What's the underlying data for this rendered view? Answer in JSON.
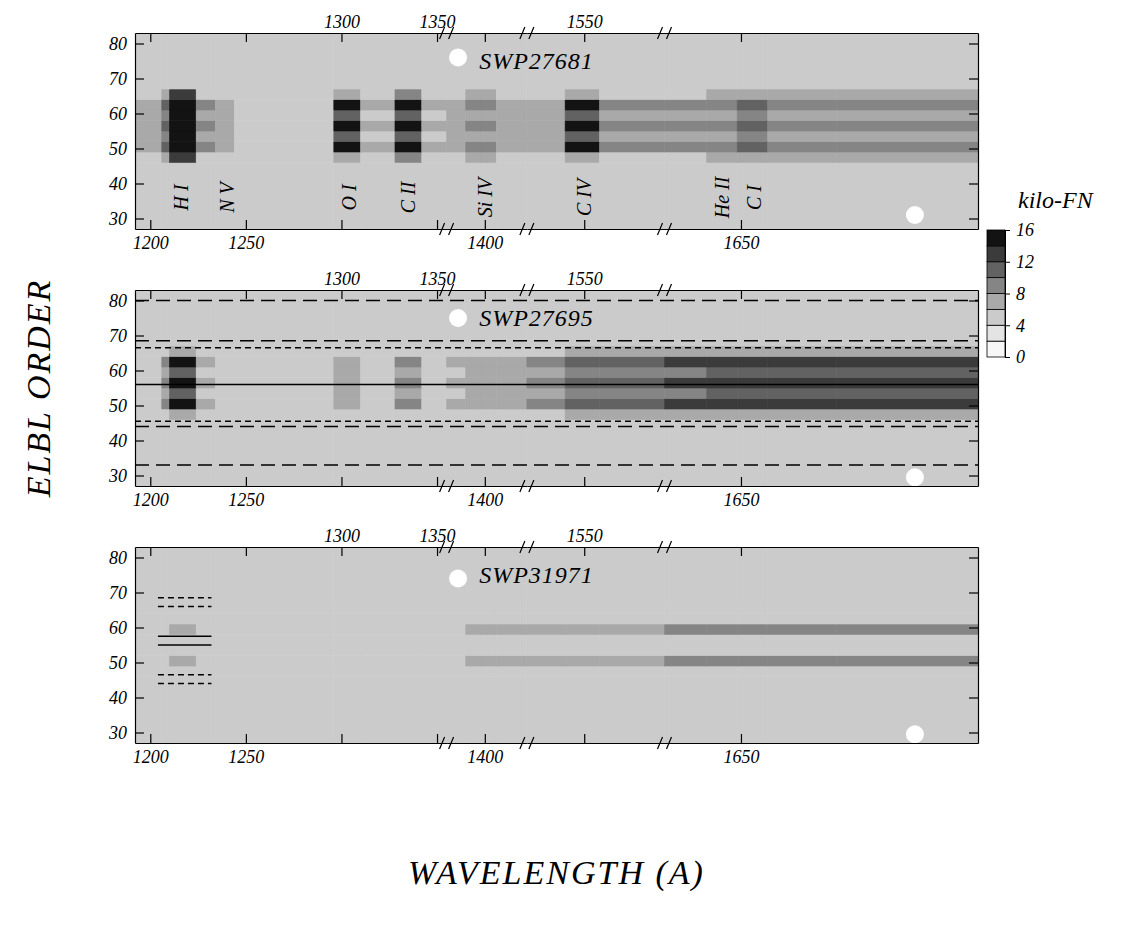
{
  "chart_data": {
    "type": "heatmap",
    "x_label": "WAVELENGTH (A)",
    "y_label": "ELBL ORDER",
    "ylim": [
      27,
      83
    ],
    "yticks": [
      30,
      40,
      50,
      60,
      70,
      80
    ],
    "y_edges": [
      27,
      46,
      49,
      52,
      55,
      58,
      61,
      64,
      67,
      83
    ],
    "x_segments": [
      {
        "xlim": [
          1192,
          1355
        ],
        "edges": [
          1192,
          1206,
          1210,
          1224,
          1234,
          1244,
          1296,
          1310,
          1328,
          1342,
          1355
        ],
        "xticks_bottom": [
          1200,
          1250
        ],
        "xticks_top": [
          1300,
          1350
        ]
      },
      {
        "xlim": [
          1380,
          1422
        ],
        "edges": [
          1380,
          1390,
          1398,
          1406,
          1422
        ],
        "xticks_bottom": [
          1400
        ],
        "xticks_top": []
      },
      {
        "xlim": [
          1520,
          1592
        ],
        "edges": [
          1520,
          1540,
          1558,
          1592
        ],
        "xticks_bottom": [],
        "xticks_top": [
          1550
        ]
      },
      {
        "xlim": [
          1610,
          1774
        ],
        "edges": [
          1610,
          1632,
          1648,
          1664,
          1700,
          1774
        ],
        "xticks_bottom": [
          1650
        ],
        "xticks_top": []
      }
    ],
    "colorbar": {
      "label": "kilo-FN",
      "range": [
        0,
        16
      ],
      "ticks": [
        0,
        4,
        8,
        12,
        16
      ],
      "levels": [
        0,
        2,
        4,
        6,
        8,
        10,
        12,
        14,
        16
      ]
    },
    "panels": [
      {
        "title": "SWP27681",
        "z": [
          [
            5,
            5,
            5,
            5,
            5,
            5,
            5,
            5,
            5,
            5,
            5,
            5,
            5,
            5,
            5,
            5,
            5,
            5,
            5,
            5,
            5,
            5
          ],
          [
            5.6,
            6.8,
            13,
            5.9,
            5.6,
            5.2,
            7.7,
            5.3,
            8,
            5.3,
            5.6,
            6.2,
            6.2,
            5.6,
            5.6,
            7.7,
            5.9,
            5.9,
            6.2,
            6.5,
            6.2,
            6.2
          ],
          [
            7,
            11,
            16,
            8,
            7,
            5.8,
            14,
            6,
            15,
            6,
            7,
            9,
            9,
            7,
            7,
            14,
            8,
            8,
            9,
            10,
            9,
            9
          ],
          [
            6.2,
            8.6,
            15,
            6.8,
            6.2,
            5.5,
            10.4,
            5.6,
            11,
            5.6,
            6.2,
            7.4,
            7.4,
            6.2,
            6.2,
            10.4,
            6.8,
            6.8,
            7.4,
            8,
            7.4,
            7.4
          ],
          [
            7,
            11,
            16,
            8,
            7,
            5.8,
            14,
            6,
            15,
            6,
            7,
            9,
            9,
            7,
            7,
            14,
            8,
            8,
            9,
            10,
            9,
            9
          ],
          [
            6.2,
            8.6,
            15,
            6.8,
            6.2,
            5.5,
            10.4,
            5.6,
            11,
            5.6,
            6.2,
            7.4,
            7.4,
            6.2,
            6.2,
            10.4,
            6.8,
            6.8,
            7.4,
            8,
            7.4,
            7.4
          ],
          [
            7,
            11,
            16,
            8,
            7,
            5.8,
            14,
            6,
            15,
            6,
            7,
            9,
            9,
            7,
            7,
            14,
            8,
            8,
            9,
            10,
            9,
            9
          ],
          [
            5.6,
            6.8,
            13,
            5.9,
            5.6,
            5.2,
            7.7,
            5.3,
            8,
            5.3,
            5.6,
            6.2,
            6.2,
            5.6,
            5.6,
            7.7,
            5.9,
            5.9,
            6.2,
            6.5,
            6.2,
            6.2
          ],
          [
            5,
            5,
            5,
            5,
            5,
            5,
            5,
            5,
            5,
            5,
            5,
            5,
            5,
            5,
            5,
            5,
            5,
            5,
            5,
            5,
            5,
            5
          ]
        ],
        "line_labels": [
          {
            "text": "H I",
            "x": 1216
          },
          {
            "text": "N V",
            "x": 1240
          },
          {
            "text": "O I",
            "x": 1304
          },
          {
            "text": "C II",
            "x": 1335
          },
          {
            "text": "Si IV",
            "x": 1400
          },
          {
            "text": "C IV",
            "x": 1550
          },
          {
            "text": "He II",
            "x": 1640
          },
          {
            "text": "C I",
            "x": 1657
          }
        ],
        "lines": [],
        "masked": [
          {
            "x": 1386,
            "y": 76
          },
          {
            "x": 1741,
            "y": 31
          }
        ]
      },
      {
        "title": "SWP27695",
        "z": [
          [
            4,
            4,
            4,
            4,
            4,
            4,
            4,
            4,
            4,
            4,
            4,
            4,
            4,
            4,
            4,
            4,
            4,
            4,
            4,
            4,
            4,
            4
          ],
          [
            4.4,
            5.4,
            7.5,
            4.7,
            4.2,
            4.4,
            5.1,
            4.4,
            5.8,
            4.5,
            4.7,
            5.1,
            5.1,
            5.1,
            5.8,
            6.1,
            6.1,
            6.8,
            7.2,
            7.2,
            7.3,
            7.3
          ],
          [
            5,
            8,
            14,
            6,
            4.5,
            5,
            7,
            5,
            9,
            5.5,
            6,
            7,
            7,
            7,
            9,
            10,
            10,
            12,
            13,
            13,
            13.5,
            13.5
          ],
          [
            4.7,
            6.8,
            11,
            5.4,
            4.4,
            4.7,
            6.1,
            4.7,
            7.5,
            5.1,
            5.4,
            6.1,
            6.1,
            6.1,
            7.5,
            8.2,
            8.2,
            9.6,
            10.3,
            10.3,
            10.7,
            10.7
          ],
          [
            5,
            8,
            14,
            6,
            4.5,
            5,
            7,
            5,
            9,
            5.5,
            6,
            7,
            7,
            7,
            9,
            10,
            10,
            12,
            13,
            13,
            13.5,
            13.5
          ],
          [
            4.7,
            6.8,
            11,
            5.4,
            4.4,
            4.7,
            6.1,
            4.7,
            7.5,
            5.1,
            5.4,
            6.1,
            6.1,
            6.1,
            7.5,
            8.2,
            8.2,
            9.6,
            10.3,
            10.3,
            10.7,
            10.7
          ],
          [
            5,
            8,
            14,
            6,
            4.5,
            5,
            7,
            5,
            9,
            5.5,
            6,
            7,
            7,
            7,
            9,
            10,
            10,
            12,
            13,
            13,
            13.5,
            13.5
          ],
          [
            4.4,
            5.4,
            7.5,
            4.7,
            4.2,
            4.4,
            5.1,
            4.4,
            5.8,
            4.5,
            4.7,
            5.1,
            5.1,
            5.1,
            5.8,
            6.1,
            6.1,
            6.8,
            7.2,
            7.2,
            7.3,
            7.3
          ],
          [
            4,
            4,
            4,
            4,
            4,
            4,
            4,
            4,
            4,
            4,
            4,
            4,
            4,
            4,
            4,
            4,
            4,
            4,
            4,
            4,
            4,
            4
          ]
        ],
        "line_labels": [],
        "lines": [
          {
            "y": 80,
            "line_style": "long-dash"
          },
          {
            "y": 68.5,
            "line_style": "long-dash"
          },
          {
            "y": 66.5,
            "line_style": "dashed"
          },
          {
            "y": 56,
            "line_style": "solid"
          },
          {
            "y": 45.5,
            "line_style": "dashed"
          },
          {
            "y": 44,
            "line_style": "long-dash"
          },
          {
            "y": 33,
            "line_style": "long-dash"
          }
        ],
        "masked": [
          {
            "x": 1386,
            "y": 75
          },
          {
            "x": 1741,
            "y": 29.5
          }
        ]
      },
      {
        "title": "SWP31971",
        "z": [
          [
            4,
            4,
            4,
            4,
            4,
            4,
            4,
            4,
            4,
            4,
            4,
            4,
            4,
            4,
            4,
            4,
            4,
            4,
            4,
            4,
            4,
            4
          ],
          [
            4.1,
            4.2,
            4.4,
            4.1,
            4.1,
            4.2,
            4.3,
            4.2,
            4.3,
            4.2,
            4.3,
            4.4,
            4.4,
            4.4,
            4.5,
            4.6,
            4.6,
            4.8,
            4.9,
            4.9,
            5,
            5
          ],
          [
            4.5,
            5,
            6,
            4.5,
            4.3,
            5,
            5.5,
            5,
            5.5,
            5,
            5.5,
            6,
            6,
            6,
            6.5,
            7,
            7,
            8,
            8.5,
            8.5,
            9,
            9
          ],
          [
            4.1,
            4.2,
            4.4,
            4.1,
            4.1,
            4.2,
            4.3,
            4.2,
            4.3,
            4.2,
            4.3,
            4.4,
            4.4,
            4.4,
            4.5,
            4.6,
            4.6,
            4.8,
            4.9,
            4.9,
            5,
            5
          ],
          [
            4.1,
            4.2,
            4.4,
            4.1,
            4.1,
            4.2,
            4.3,
            4.2,
            4.3,
            4.2,
            4.3,
            4.4,
            4.4,
            4.4,
            4.5,
            4.6,
            4.6,
            4.8,
            4.9,
            4.9,
            5,
            5
          ],
          [
            4.5,
            5,
            6,
            4.5,
            4.3,
            5,
            5.5,
            5,
            5.5,
            5,
            5.5,
            6,
            6,
            6,
            6.5,
            7,
            7,
            8,
            8.5,
            8.5,
            9,
            9
          ],
          [
            4.1,
            4.2,
            4.4,
            4.1,
            4.1,
            4.2,
            4.3,
            4.2,
            4.3,
            4.2,
            4.3,
            4.4,
            4.4,
            4.4,
            4.5,
            4.6,
            4.6,
            4.8,
            4.9,
            4.9,
            5,
            5
          ],
          [
            4,
            4,
            4,
            4,
            4,
            4,
            4,
            4,
            4,
            4,
            4,
            4,
            4,
            4,
            4,
            4,
            4,
            4,
            4,
            4,
            4,
            4
          ],
          [
            4,
            4,
            4,
            4,
            4,
            4,
            4,
            4,
            4,
            4,
            4,
            4,
            4,
            4,
            4,
            4,
            4,
            4,
            4,
            4,
            4,
            4
          ]
        ],
        "line_labels": [],
        "lines": [
          {
            "y": 68.5,
            "line_style": "dashed",
            "x": [
              1204,
              1232
            ]
          },
          {
            "y": 66,
            "line_style": "dashed",
            "x": [
              1204,
              1232
            ]
          },
          {
            "y": 57.5,
            "line_style": "solid",
            "x": [
              1204,
              1232
            ]
          },
          {
            "y": 55,
            "line_style": "solid",
            "x": [
              1204,
              1232
            ]
          },
          {
            "y": 46.5,
            "line_style": "dashed",
            "x": [
              1204,
              1232
            ]
          },
          {
            "y": 44,
            "line_style": "dashed",
            "x": [
              1204,
              1232
            ]
          }
        ],
        "masked": [
          {
            "x": 1386,
            "y": 74
          },
          {
            "x": 1741,
            "y": 29.5
          }
        ]
      }
    ]
  }
}
